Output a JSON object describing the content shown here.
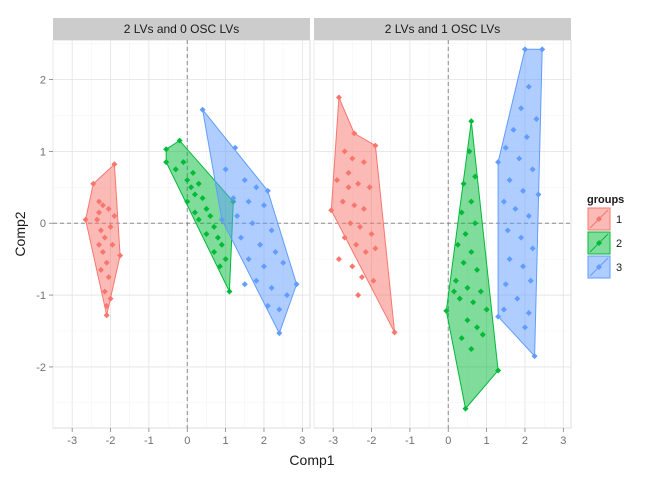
{
  "chart_data": {
    "type": "scatter",
    "xlabel": "Comp1",
    "ylabel": "Comp2",
    "xlim": [
      -3.5,
      3.2
    ],
    "ylim": [
      -2.85,
      2.55
    ],
    "x_ticks": [
      -3,
      -2,
      -1,
      0,
      1,
      2,
      3
    ],
    "y_ticks": [
      -2,
      -1,
      0,
      1,
      2
    ],
    "grid": true,
    "reference_lines": {
      "x": 0,
      "y": 0,
      "style": "dashed"
    },
    "legend": {
      "title": "groups",
      "placement": "right",
      "entries": [
        "1",
        "2",
        "3"
      ]
    },
    "colors": {
      "1": "#F8766D",
      "2": "#00BA38",
      "3": "#619CFF"
    },
    "panels": [
      {
        "title": "2 LVs and 0 OSC LVs",
        "groups": [
          {
            "name": "1",
            "hull": [
              [
                -2.65,
                0.05
              ],
              [
                -2.45,
                0.55
              ],
              [
                -1.9,
                0.82
              ],
              [
                -1.75,
                -0.45
              ],
              [
                -2.1,
                -1.28
              ]
            ],
            "points": [
              [
                -2.45,
                0.55
              ],
              [
                -1.9,
                0.82
              ],
              [
                -2.65,
                0.05
              ],
              [
                -1.75,
                -0.45
              ],
              [
                -2.1,
                -1.28
              ],
              [
                -2.3,
                0.3
              ],
              [
                -2.2,
                0.25
              ],
              [
                -2.05,
                0.2
              ],
              [
                -2.35,
                0.05
              ],
              [
                -2.25,
                -0.1
              ],
              [
                -2.15,
                -0.2
              ],
              [
                -2.0,
                -0.05
              ],
              [
                -2.3,
                -0.3
              ],
              [
                -2.2,
                -0.4
              ],
              [
                -2.1,
                -0.55
              ],
              [
                -1.95,
                -0.3
              ],
              [
                -2.25,
                -0.65
              ],
              [
                -2.05,
                -0.75
              ],
              [
                -2.15,
                -0.95
              ],
              [
                -2.0,
                -1.05
              ],
              [
                -2.1,
                -1.15
              ],
              [
                -2.3,
                0.15
              ],
              [
                -1.9,
                0.1
              ]
            ]
          },
          {
            "name": "2",
            "hull": [
              [
                -0.55,
                1.03
              ],
              [
                -0.2,
                1.15
              ],
              [
                1.2,
                0.3
              ],
              [
                1.1,
                -0.95
              ],
              [
                -0.55,
                0.85
              ]
            ],
            "points": [
              [
                -0.55,
                1.03
              ],
              [
                -0.2,
                1.15
              ],
              [
                1.2,
                0.3
              ],
              [
                1.1,
                -0.95
              ],
              [
                -0.55,
                0.85
              ],
              [
                -0.3,
                0.75
              ],
              [
                -0.1,
                0.85
              ],
              [
                0.0,
                0.6
              ],
              [
                0.1,
                0.5
              ],
              [
                0.2,
                0.4
              ],
              [
                0.3,
                0.55
              ],
              [
                0.4,
                0.35
              ],
              [
                0.5,
                0.2
              ],
              [
                0.0,
                0.3
              ],
              [
                0.2,
                0.15
              ],
              [
                0.6,
                0.1
              ],
              [
                0.7,
                -0.05
              ],
              [
                0.8,
                -0.2
              ],
              [
                0.5,
                -0.15
              ],
              [
                0.9,
                -0.3
              ],
              [
                0.7,
                -0.4
              ],
              [
                0.85,
                -0.6
              ],
              [
                1.0,
                -0.5
              ],
              [
                0.3,
                0.05
              ],
              [
                0.15,
                0.7
              ]
            ]
          },
          {
            "name": "3",
            "hull": [
              [
                0.4,
                1.58
              ],
              [
                2.1,
                0.45
              ],
              [
                2.85,
                -0.85
              ],
              [
                2.4,
                -1.53
              ],
              [
                0.9,
                0.05
              ]
            ],
            "points": [
              [
                0.4,
                1.58
              ],
              [
                2.1,
                0.45
              ],
              [
                2.85,
                -0.85
              ],
              [
                2.4,
                -1.53
              ],
              [
                0.9,
                0.05
              ],
              [
                1.25,
                1.05
              ],
              [
                1.0,
                0.75
              ],
              [
                1.5,
                0.6
              ],
              [
                1.8,
                0.5
              ],
              [
                1.2,
                0.35
              ],
              [
                1.6,
                0.3
              ],
              [
                2.0,
                0.25
              ],
              [
                1.3,
                0.1
              ],
              [
                1.7,
                0.0
              ],
              [
                2.2,
                -0.1
              ],
              [
                1.4,
                -0.2
              ],
              [
                1.9,
                -0.3
              ],
              [
                2.3,
                -0.4
              ],
              [
                1.6,
                -0.5
              ],
              [
                2.0,
                -0.6
              ],
              [
                2.5,
                -0.55
              ],
              [
                1.8,
                -0.8
              ],
              [
                2.2,
                -0.9
              ],
              [
                2.6,
                -1.0
              ],
              [
                2.1,
                -1.15
              ],
              [
                2.4,
                -1.2
              ],
              [
                1.5,
                -0.85
              ]
            ]
          }
        ]
      },
      {
        "title": "2 LVs and 1 OSC LVs",
        "groups": [
          {
            "name": "1",
            "hull": [
              [
                -3.05,
                0.18
              ],
              [
                -2.85,
                1.75
              ],
              [
                -2.45,
                1.25
              ],
              [
                -1.9,
                1.08
              ],
              [
                -1.4,
                -1.52
              ]
            ],
            "points": [
              [
                -3.05,
                0.18
              ],
              [
                -2.85,
                1.75
              ],
              [
                -2.45,
                1.25
              ],
              [
                -1.9,
                1.08
              ],
              [
                -1.4,
                -1.52
              ],
              [
                -2.7,
                1.0
              ],
              [
                -2.5,
                0.9
              ],
              [
                -2.2,
                0.85
              ],
              [
                -2.9,
                0.6
              ],
              [
                -2.6,
                0.5
              ],
              [
                -2.35,
                0.55
              ],
              [
                -2.05,
                0.5
              ],
              [
                -2.75,
                0.3
              ],
              [
                -2.45,
                0.25
              ],
              [
                -2.2,
                0.2
              ],
              [
                -2.55,
                0.0
              ],
              [
                -2.3,
                -0.05
              ],
              [
                -2.0,
                -0.15
              ],
              [
                -2.7,
                -0.2
              ],
              [
                -2.4,
                -0.3
              ],
              [
                -2.15,
                -0.4
              ],
              [
                -2.85,
                -0.5
              ],
              [
                -2.5,
                -0.6
              ],
              [
                -2.25,
                -0.75
              ],
              [
                -1.95,
                -0.8
              ],
              [
                -2.35,
                -1.0
              ],
              [
                -1.9,
                -0.35
              ],
              [
                -2.6,
                0.7
              ]
            ]
          },
          {
            "name": "2",
            "hull": [
              [
                -0.05,
                -1.22
              ],
              [
                0.6,
                1.42
              ],
              [
                1.3,
                -2.05
              ],
              [
                0.45,
                -2.58
              ]
            ],
            "points": [
              [
                -0.05,
                -1.22
              ],
              [
                0.6,
                1.42
              ],
              [
                1.3,
                -2.05
              ],
              [
                0.45,
                -2.58
              ],
              [
                0.55,
                1.0
              ],
              [
                0.7,
                0.65
              ],
              [
                0.4,
                0.55
              ],
              [
                0.6,
                0.3
              ],
              [
                0.35,
                0.15
              ],
              [
                0.7,
                0.0
              ],
              [
                0.45,
                -0.15
              ],
              [
                0.25,
                -0.3
              ],
              [
                0.6,
                -0.4
              ],
              [
                0.4,
                -0.55
              ],
              [
                0.75,
                -0.65
              ],
              [
                0.2,
                -0.8
              ],
              [
                0.5,
                -0.9
              ],
              [
                0.85,
                -0.95
              ],
              [
                0.3,
                -1.05
              ],
              [
                0.65,
                -1.1
              ],
              [
                0.5,
                -1.35
              ],
              [
                0.75,
                -1.45
              ],
              [
                0.35,
                -1.6
              ],
              [
                0.6,
                -1.75
              ],
              [
                0.9,
                -1.55
              ],
              [
                1.0,
                -1.2
              ],
              [
                0.15,
                -0.95
              ]
            ]
          },
          {
            "name": "3",
            "hull": [
              [
                1.3,
                0.85
              ],
              [
                2.0,
                2.42
              ],
              [
                2.45,
                2.42
              ],
              [
                2.25,
                -1.85
              ],
              [
                1.3,
                -1.3
              ]
            ],
            "points": [
              [
                1.3,
                0.85
              ],
              [
                2.0,
                2.42
              ],
              [
                2.45,
                2.42
              ],
              [
                2.25,
                -1.85
              ],
              [
                1.3,
                -1.3
              ],
              [
                2.1,
                1.9
              ],
              [
                1.9,
                1.6
              ],
              [
                2.3,
                1.45
              ],
              [
                1.7,
                1.3
              ],
              [
                2.05,
                1.2
              ],
              [
                1.5,
                1.05
              ],
              [
                1.85,
                0.9
              ],
              [
                2.2,
                0.75
              ],
              [
                1.6,
                0.6
              ],
              [
                1.95,
                0.45
              ],
              [
                2.35,
                0.4
              ],
              [
                1.45,
                0.3
              ],
              [
                1.75,
                0.2
              ],
              [
                2.1,
                0.1
              ],
              [
                1.55,
                -0.1
              ],
              [
                1.9,
                -0.2
              ],
              [
                2.2,
                -0.35
              ],
              [
                1.6,
                -0.5
              ],
              [
                1.95,
                -0.6
              ],
              [
                2.15,
                -0.8
              ],
              [
                1.5,
                -0.85
              ],
              [
                1.8,
                -1.05
              ],
              [
                2.1,
                -1.25
              ],
              [
                1.45,
                -1.2
              ],
              [
                2.0,
                -1.45
              ]
            ]
          }
        ]
      }
    ]
  }
}
